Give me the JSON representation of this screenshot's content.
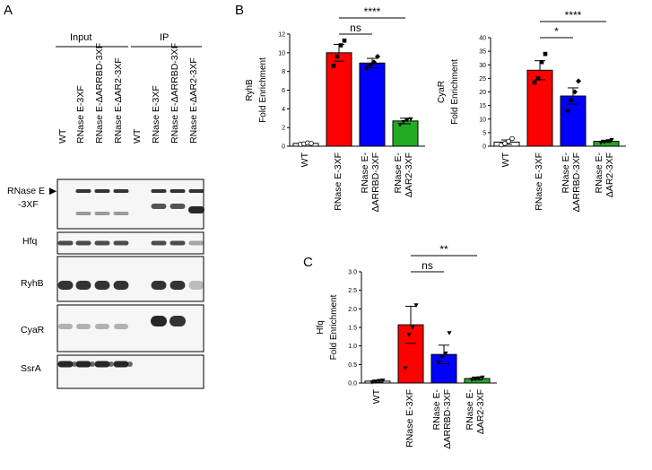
{
  "panel_a": {
    "label": "A",
    "group_input": "Input",
    "group_ip": "IP",
    "lanes": [
      "WT",
      "RNase E-3XF",
      "RNase E-ΔARRBD-3XF",
      "RNase E-ΔAR2-3XF",
      "WT",
      "RNase E-3XF",
      "RNase E-ΔARRBD-3XF",
      "RNase E-ΔAR2-3XF"
    ],
    "blots": [
      {
        "label_line1": "RNase E",
        "label_line2": "-3XF",
        "arrow": "▶"
      },
      {
        "label_line1": "Hfq",
        "label_line2": ""
      },
      {
        "label_line1": "RyhB",
        "label_line2": ""
      },
      {
        "label_line1": "CyaR",
        "label_line2": ""
      },
      {
        "label_line1": "SsrA",
        "label_line2": ""
      }
    ]
  },
  "chart_data": [
    {
      "panel": "B",
      "type": "bar",
      "ylabel_line1": "RyhB",
      "ylabel_line2": "Fold Enrichment",
      "ylim": [
        0,
        12
      ],
      "yticks": [
        "0",
        "2",
        "4",
        "6",
        "8",
        "10",
        "12"
      ],
      "categories": [
        "WT",
        "RNase E-3XF",
        "RNase E-\nΔARRBD-3XF",
        "RNase E-\nΔAR2-3XF"
      ],
      "values": [
        0.3,
        10.0,
        8.9,
        2.7
      ],
      "errors": [
        0.1,
        0.9,
        0.5,
        0.3
      ],
      "colors": [
        "#ffffff",
        "#ff0000",
        "#0000ff",
        "#22aa22"
      ],
      "points": [
        [
          0.2,
          0.25,
          0.35,
          0.3
        ],
        [
          8.6,
          9.6,
          10.8,
          11.3
        ],
        [
          8.4,
          8.7,
          9.0,
          9.6
        ],
        [
          2.3,
          2.6,
          2.8,
          2.9
        ]
      ],
      "significance": [
        {
          "from": 1,
          "to": 2,
          "label": "ns"
        },
        {
          "from": 1,
          "to": 3,
          "label": "****"
        }
      ]
    },
    {
      "panel": "B",
      "type": "bar",
      "ylabel_line1": "CyaR",
      "ylabel_line2": "Fold Enrichment",
      "ylim": [
        0,
        40
      ],
      "yticks": [
        "0",
        "5",
        "10",
        "15",
        "20",
        "25",
        "30",
        "35",
        "40"
      ],
      "categories": [
        "WT",
        "RNase E-3XF",
        "RNase E-\nΔARRBD-3XF",
        "RNase E-\nΔAR2-3XF"
      ],
      "values": [
        1.5,
        28.0,
        18.5,
        1.8
      ],
      "errors": [
        0.8,
        3.5,
        3.0,
        0.4
      ],
      "colors": [
        "#ffffff",
        "#ff0000",
        "#0000ff",
        "#22aa22"
      ],
      "points": [
        [
          0.5,
          1.0,
          1.8,
          2.8
        ],
        [
          23.5,
          25.0,
          31.0,
          34.0
        ],
        [
          13.0,
          17.0,
          20.0,
          24.0
        ],
        [
          1.3,
          1.6,
          1.9,
          2.3
        ]
      ],
      "significance": [
        {
          "from": 1,
          "to": 2,
          "label": "*"
        },
        {
          "from": 1,
          "to": 3,
          "label": "****"
        }
      ]
    },
    {
      "panel": "C",
      "type": "bar",
      "ylabel_line1": "Hfq",
      "ylabel_line2": "Fold Enrichment",
      "ylim": [
        0,
        3.0
      ],
      "yticks": [
        "0.0",
        "0.5",
        "1.0",
        "1.5",
        "2.0",
        "2.5",
        "3.0"
      ],
      "categories": [
        "WT",
        "RNase E-3XF",
        "RNase E-\nΔARRBD-3XF",
        "RNase E-\nΔAR2-3XF"
      ],
      "values": [
        0.05,
        1.57,
        0.77,
        0.12
      ],
      "errors": [
        0.03,
        0.5,
        0.25,
        0.04
      ],
      "colors": [
        "#ffffff",
        "#ff0000",
        "#0000ff",
        "#22aa22"
      ],
      "points": [
        [
          0.02,
          0.04,
          0.06,
          0.07
        ],
        [
          0.4,
          1.3,
          1.5,
          2.1
        ],
        [
          0.55,
          0.7,
          0.8,
          1.35
        ],
        [
          0.09,
          0.11,
          0.13,
          0.15
        ]
      ],
      "significance": [
        {
          "from": 1,
          "to": 2,
          "label": "ns"
        },
        {
          "from": 1,
          "to": 3,
          "label": "**"
        }
      ]
    }
  ]
}
